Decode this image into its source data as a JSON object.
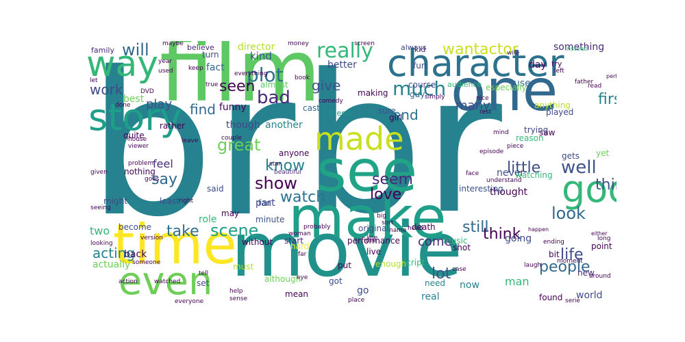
{
  "colors": {
    "background": "#ffffff",
    "palette": [
      "#440154",
      "#3e4a89",
      "#31688e",
      "#26828e",
      "#1f9e89",
      "#35b779",
      "#6ece58",
      "#b5de2b",
      "#fde725"
    ]
  },
  "words": [
    {
      "text": "br"
    },
    {
      "text": "br"
    },
    {
      "text": "movie"
    },
    {
      "text": "film"
    },
    {
      "text": "one"
    },
    {
      "text": "see"
    },
    {
      "text": "make"
    },
    {
      "text": "time"
    },
    {
      "text": "character"
    },
    {
      "text": "way"
    },
    {
      "text": "even"
    },
    {
      "text": "story"
    },
    {
      "text": "made"
    },
    {
      "text": "good"
    },
    {
      "text": "show"
    },
    {
      "text": "well"
    },
    {
      "text": "really"
    },
    {
      "text": "plot"
    },
    {
      "text": "much"
    },
    {
      "text": "bad"
    },
    {
      "text": "wantactor"
    },
    {
      "text": "will"
    },
    {
      "text": "work"
    },
    {
      "text": "seen"
    },
    {
      "text": "first"
    },
    {
      "text": "thing"
    },
    {
      "text": "look"
    },
    {
      "text": "great"
    },
    {
      "text": "know"
    },
    {
      "text": "say"
    },
    {
      "text": "watch"
    },
    {
      "text": "love"
    },
    {
      "text": "seem"
    },
    {
      "text": "little"
    },
    {
      "text": "scene"
    },
    {
      "text": "take"
    },
    {
      "text": "think"
    },
    {
      "text": "people"
    },
    {
      "text": "life"
    },
    {
      "text": "acting"
    },
    {
      "text": "lot"
    },
    {
      "text": "still"
    },
    {
      "text": "come"
    },
    {
      "text": "end"
    },
    {
      "text": "give"
    },
    {
      "text": "find"
    },
    {
      "text": "many"
    },
    {
      "text": "play"
    },
    {
      "text": "feel"
    },
    {
      "text": "something"
    },
    {
      "text": "family"
    },
    {
      "text": "director"
    },
    {
      "text": "kind"
    },
    {
      "text": "fact"
    },
    {
      "text": "better"
    },
    {
      "text": "believe"
    },
    {
      "text": "maybe"
    },
    {
      "text": "money"
    },
    {
      "text": "screen"
    },
    {
      "text": "always"
    },
    {
      "text": "kid"
    },
    {
      "text": "wife"
    },
    {
      "text": "instead"
    },
    {
      "text": "day"
    },
    {
      "text": "try"
    },
    {
      "text": "turn"
    },
    {
      "text": "almost"
    },
    {
      "text": "fun"
    },
    {
      "text": "audience"
    },
    {
      "text": "use"
    },
    {
      "text": "father"
    },
    {
      "text": "read"
    },
    {
      "text": "perhaps"
    },
    {
      "text": "best"
    },
    {
      "text": "funny"
    },
    {
      "text": "though"
    },
    {
      "text": "another"
    },
    {
      "text": "cast"
    },
    {
      "text": "friend"
    },
    {
      "text": "girl"
    },
    {
      "text": "sure"
    },
    {
      "text": "guy"
    },
    {
      "text": "making"
    },
    {
      "text": "course"
    },
    {
      "text": "especially"
    },
    {
      "text": "reason"
    },
    {
      "text": "trying"
    },
    {
      "text": "anything"
    },
    {
      "text": "played"
    },
    {
      "text": "saw"
    },
    {
      "text": "yet"
    },
    {
      "text": "rather"
    },
    {
      "text": "quite"
    },
    {
      "text": "nothing"
    },
    {
      "text": "anyone"
    },
    {
      "text": "beautiful"
    },
    {
      "text": "part"
    },
    {
      "text": "fan"
    },
    {
      "text": "minute"
    },
    {
      "text": "role"
    },
    {
      "text": "least"
    },
    {
      "text": "might"
    },
    {
      "text": "may"
    },
    {
      "text": "become"
    },
    {
      "text": "two"
    },
    {
      "text": "back"
    },
    {
      "text": "actually"
    },
    {
      "text": "set"
    },
    {
      "text": "without"
    },
    {
      "text": "start"
    },
    {
      "text": "performance"
    },
    {
      "text": "music"
    },
    {
      "text": "put"
    },
    {
      "text": "live"
    },
    {
      "text": "script"
    },
    {
      "text": "got"
    },
    {
      "text": "go"
    },
    {
      "text": "enough"
    },
    {
      "text": "real"
    },
    {
      "text": "need"
    },
    {
      "text": "now"
    },
    {
      "text": "man"
    },
    {
      "text": "going"
    },
    {
      "text": "never"
    },
    {
      "text": "thought"
    },
    {
      "text": "watching"
    },
    {
      "text": "gets"
    },
    {
      "text": "shot"
    },
    {
      "text": "point"
    },
    {
      "text": "bit"
    },
    {
      "text": "new"
    },
    {
      "text": "world"
    },
    {
      "text": "found"
    },
    {
      "text": "moment"
    },
    {
      "text": "laugh"
    },
    {
      "text": "long"
    },
    {
      "text": "ending"
    },
    {
      "text": "happen"
    },
    {
      "text": "either"
    },
    {
      "text": "interesting"
    },
    {
      "text": "understand"
    },
    {
      "text": "face"
    },
    {
      "text": "name"
    },
    {
      "text": "idea"
    },
    {
      "text": "original"
    },
    {
      "text": "big"
    },
    {
      "text": "sort"
    },
    {
      "text": "death"
    },
    {
      "text": "head"
    },
    {
      "text": "line"
    },
    {
      "text": "probably"
    },
    {
      "text": "although"
    },
    {
      "text": "must"
    },
    {
      "text": "mean"
    },
    {
      "text": "eye"
    },
    {
      "text": "far"
    },
    {
      "text": "hard"
    },
    {
      "text": "woman"
    },
    {
      "text": "tell"
    },
    {
      "text": "someone"
    },
    {
      "text": "version"
    },
    {
      "text": "action"
    },
    {
      "text": "seeing"
    },
    {
      "text": "looking"
    },
    {
      "text": "given"
    },
    {
      "text": "house"
    },
    {
      "text": "viewer"
    },
    {
      "text": "problem"
    },
    {
      "text": "goes"
    },
    {
      "text": "leave"
    },
    {
      "text": "couple"
    },
    {
      "text": "star"
    },
    {
      "text": "right"
    },
    {
      "text": "said"
    },
    {
      "text": "watched"
    },
    {
      "text": "help"
    },
    {
      "text": "sense"
    },
    {
      "text": "everyone"
    },
    {
      "text": "place"
    },
    {
      "text": "serie"
    },
    {
      "text": "around"
    },
    {
      "text": "case"
    },
    {
      "text": "episode"
    },
    {
      "text": "piece"
    },
    {
      "text": "nice"
    },
    {
      "text": "rest"
    },
    {
      "text": "mind"
    },
    {
      "text": "simply"
    },
    {
      "text": "comedy"
    },
    {
      "text": "book"
    },
    {
      "text": "true"
    },
    {
      "text": "keep"
    },
    {
      "text": "used"
    },
    {
      "text": "year"
    },
    {
      "text": "let"
    },
    {
      "text": "DVD"
    },
    {
      "text": "done"
    },
    {
      "text": "left"
    },
    {
      "text": "everything"
    }
  ]
}
